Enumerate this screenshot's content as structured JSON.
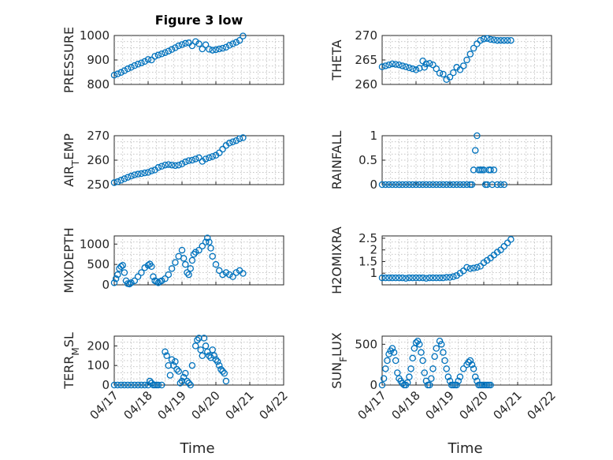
{
  "figure": {
    "title": "Figure 3 low"
  },
  "chart_data": [
    {
      "type": "scatter",
      "ylabel": "PRESSURE",
      "ylim": [
        800,
        1000
      ],
      "yticks": [
        800,
        900,
        1000
      ],
      "xlim": [
        0,
        5
      ],
      "x": [
        0.0,
        0.1,
        0.2,
        0.3,
        0.4,
        0.5,
        0.6,
        0.7,
        0.8,
        0.9,
        1.0,
        1.1,
        1.2,
        1.3,
        1.4,
        1.5,
        1.6,
        1.7,
        1.8,
        1.9,
        2.0,
        2.1,
        2.2,
        2.3,
        2.4,
        2.5,
        2.6,
        2.7,
        2.8,
        2.9,
        3.0,
        3.1,
        3.2,
        3.3,
        3.4,
        3.5,
        3.6,
        3.7,
        3.8
      ],
      "y": [
        838,
        843,
        849,
        856,
        864,
        870,
        877,
        883,
        888,
        894,
        902,
        900,
        915,
        920,
        925,
        930,
        936,
        943,
        950,
        958,
        963,
        968,
        970,
        958,
        975,
        966,
        945,
        962,
        944,
        940,
        942,
        945,
        948,
        952,
        960,
        966,
        972,
        980,
        998
      ],
      "grid": true
    },
    {
      "type": "scatter",
      "ylabel": "THETA",
      "ylim": [
        260,
        270
      ],
      "yticks": [
        260,
        265,
        270
      ],
      "xlim": [
        0,
        5
      ],
      "x": [
        0.0,
        0.1,
        0.2,
        0.3,
        0.4,
        0.5,
        0.6,
        0.7,
        0.8,
        0.9,
        1.0,
        1.1,
        1.2,
        1.25,
        1.3,
        1.4,
        1.5,
        1.6,
        1.7,
        1.8,
        1.9,
        2.0,
        2.1,
        2.2,
        2.3,
        2.4,
        2.5,
        2.6,
        2.7,
        2.8,
        2.9,
        3.0,
        3.1,
        3.2,
        3.3,
        3.4,
        3.5,
        3.6,
        3.7,
        3.8
      ],
      "y": [
        263.6,
        263.8,
        264.0,
        264.2,
        264.1,
        264.0,
        263.8,
        263.6,
        263.4,
        263.2,
        263.0,
        263.3,
        264.8,
        263.5,
        264.2,
        264.3,
        264.0,
        263.2,
        262.3,
        262.1,
        261.0,
        261.5,
        262.4,
        263.5,
        263.0,
        263.8,
        265.0,
        266.2,
        267.4,
        268.3,
        269.0,
        269.3,
        269.4,
        269.2,
        269.1,
        269.0,
        269.0,
        269.0,
        269.0,
        269.0
      ],
      "grid": true
    },
    {
      "type": "scatter",
      "ylabel": "AIR_TEMP",
      "ylim": [
        250,
        270
      ],
      "yticks": [
        250,
        260,
        270
      ],
      "xlim": [
        0,
        5
      ],
      "x": [
        0.0,
        0.1,
        0.2,
        0.3,
        0.4,
        0.5,
        0.6,
        0.7,
        0.8,
        0.9,
        1.0,
        1.1,
        1.2,
        1.3,
        1.4,
        1.5,
        1.6,
        1.7,
        1.8,
        1.9,
        2.0,
        2.1,
        2.2,
        2.3,
        2.4,
        2.5,
        2.6,
        2.7,
        2.8,
        2.9,
        3.0,
        3.1,
        3.2,
        3.3,
        3.4,
        3.5,
        3.6,
        3.7,
        3.8
      ],
      "y": [
        250.8,
        251.2,
        251.8,
        252.4,
        253.0,
        253.5,
        254.0,
        254.3,
        254.5,
        254.8,
        255.0,
        255.6,
        256.0,
        257.0,
        257.5,
        258.0,
        258.2,
        258.0,
        257.8,
        258.0,
        258.5,
        259.3,
        259.8,
        260.0,
        260.5,
        261.0,
        259.5,
        260.5,
        261.0,
        261.5,
        262.0,
        263.0,
        264.5,
        266.0,
        267.0,
        267.5,
        268.0,
        268.8,
        269.2
      ],
      "grid": true
    },
    {
      "type": "scatter",
      "ylabel": "RAINFALL",
      "ylim": [
        0,
        1
      ],
      "yticks": [
        0,
        0.5,
        1
      ],
      "xlim": [
        0,
        5
      ],
      "x": [
        0.0,
        0.1,
        0.2,
        0.3,
        0.4,
        0.5,
        0.6,
        0.7,
        0.8,
        0.9,
        1.0,
        1.1,
        1.2,
        1.3,
        1.4,
        1.5,
        1.6,
        1.7,
        1.8,
        1.9,
        2.0,
        2.1,
        2.2,
        2.3,
        2.4,
        2.5,
        2.6,
        2.65,
        2.7,
        2.75,
        2.8,
        2.85,
        2.9,
        2.95,
        3.0,
        3.05,
        3.1,
        3.15,
        3.2,
        3.25,
        3.3,
        3.4,
        3.5,
        3.6
      ],
      "y": [
        0,
        0,
        0,
        0,
        0,
        0,
        0,
        0,
        0,
        0,
        0,
        0,
        0,
        0,
        0,
        0,
        0,
        0,
        0,
        0,
        0,
        0,
        0,
        0,
        0,
        0,
        0,
        0,
        0.3,
        0.7,
        1.0,
        0.3,
        0.3,
        0.3,
        0.3,
        0,
        0,
        0.3,
        0.3,
        0,
        0.3,
        0,
        0,
        0
      ],
      "grid": true
    },
    {
      "type": "scatter",
      "ylabel": "MIXDEPTH",
      "ylim": [
        0,
        1200
      ],
      "yticks": [
        0,
        500,
        1000
      ],
      "xlim": [
        0,
        5
      ],
      "x": [
        0.0,
        0.05,
        0.1,
        0.15,
        0.2,
        0.25,
        0.3,
        0.35,
        0.4,
        0.45,
        0.5,
        0.6,
        0.7,
        0.8,
        0.9,
        1.0,
        1.05,
        1.1,
        1.15,
        1.2,
        1.25,
        1.3,
        1.35,
        1.4,
        1.5,
        1.6,
        1.7,
        1.8,
        1.9,
        2.0,
        2.05,
        2.1,
        2.15,
        2.2,
        2.25,
        2.3,
        2.35,
        2.4,
        2.5,
        2.6,
        2.7,
        2.75,
        2.8,
        2.85,
        2.9,
        3.0,
        3.1,
        3.2,
        3.3,
        3.4,
        3.5,
        3.6,
        3.7,
        3.8
      ],
      "y": [
        50,
        150,
        250,
        400,
        450,
        480,
        300,
        100,
        30,
        20,
        50,
        100,
        200,
        300,
        420,
        480,
        510,
        450,
        200,
        100,
        80,
        50,
        80,
        100,
        150,
        250,
        400,
        550,
        700,
        850,
        650,
        500,
        300,
        250,
        400,
        600,
        750,
        800,
        850,
        950,
        1050,
        1150,
        1050,
        900,
        700,
        500,
        350,
        250,
        300,
        250,
        200,
        300,
        350,
        280
      ],
      "grid": true
    },
    {
      "type": "scatter",
      "ylabel": "H2OMIXRA",
      "ylim": [
        0.5,
        2.6
      ],
      "yticks": [
        1,
        1.5,
        2,
        2.5
      ],
      "xlim": [
        0,
        5
      ],
      "x": [
        0.0,
        0.1,
        0.2,
        0.3,
        0.4,
        0.5,
        0.6,
        0.7,
        0.8,
        0.9,
        1.0,
        1.1,
        1.2,
        1.3,
        1.4,
        1.5,
        1.6,
        1.7,
        1.8,
        1.9,
        2.0,
        2.1,
        2.2,
        2.3,
        2.4,
        2.5,
        2.6,
        2.7,
        2.8,
        2.9,
        3.0,
        3.1,
        3.2,
        3.3,
        3.4,
        3.5,
        3.6,
        3.7,
        3.8
      ],
      "y": [
        0.8,
        0.8,
        0.8,
        0.8,
        0.8,
        0.8,
        0.8,
        0.78,
        0.8,
        0.8,
        0.8,
        0.8,
        0.8,
        0.78,
        0.8,
        0.8,
        0.8,
        0.8,
        0.8,
        0.82,
        0.82,
        0.85,
        0.9,
        1.0,
        1.1,
        1.25,
        1.2,
        1.22,
        1.25,
        1.3,
        1.45,
        1.55,
        1.65,
        1.78,
        1.9,
        2.0,
        2.15,
        2.3,
        2.45
      ],
      "grid": true
    },
    {
      "type": "scatter",
      "ylabel": "TERR_MSL",
      "ylim": [
        0,
        250
      ],
      "yticks": [
        0,
        100,
        200
      ],
      "xlim": [
        0,
        5
      ],
      "x": [
        0.0,
        0.1,
        0.2,
        0.3,
        0.4,
        0.5,
        0.6,
        0.7,
        0.8,
        0.9,
        1.0,
        1.05,
        1.1,
        1.15,
        1.2,
        1.25,
        1.3,
        1.4,
        1.5,
        1.55,
        1.6,
        1.65,
        1.7,
        1.75,
        1.8,
        1.85,
        1.9,
        1.95,
        2.0,
        2.05,
        2.1,
        2.15,
        2.2,
        2.25,
        2.3,
        2.4,
        2.45,
        2.5,
        2.55,
        2.6,
        2.65,
        2.7,
        2.75,
        2.8,
        2.85,
        2.9,
        2.95,
        3.0,
        3.05,
        3.1,
        3.15,
        3.2,
        3.25,
        3.3
      ],
      "y": [
        0,
        0,
        0,
        0,
        0,
        0,
        0,
        0,
        0,
        0,
        0,
        20,
        10,
        0,
        0,
        0,
        0,
        0,
        170,
        150,
        100,
        50,
        130,
        100,
        120,
        80,
        70,
        10,
        20,
        40,
        60,
        20,
        10,
        0,
        100,
        200,
        230,
        240,
        180,
        150,
        240,
        200,
        170,
        150,
        140,
        180,
        150,
        130,
        120,
        100,
        80,
        70,
        60,
        20
      ],
      "grid": true
    },
    {
      "type": "scatter",
      "ylabel": "SUN_FLUX",
      "ylim": [
        0,
        600
      ],
      "yticks": [
        0,
        500
      ],
      "xlim": [
        0,
        5
      ],
      "x": [
        0.0,
        0.05,
        0.1,
        0.15,
        0.2,
        0.25,
        0.3,
        0.35,
        0.4,
        0.45,
        0.5,
        0.55,
        0.6,
        0.65,
        0.7,
        0.75,
        0.8,
        0.85,
        0.9,
        0.95,
        1.0,
        1.05,
        1.1,
        1.15,
        1.2,
        1.25,
        1.3,
        1.35,
        1.4,
        1.45,
        1.5,
        1.55,
        1.6,
        1.7,
        1.75,
        1.8,
        1.85,
        1.9,
        1.95,
        2.0,
        2.05,
        2.1,
        2.15,
        2.2,
        2.25,
        2.3,
        2.4,
        2.5,
        2.55,
        2.6,
        2.65,
        2.7,
        2.75,
        2.8,
        2.85,
        2.9,
        2.95,
        3.0,
        3.05,
        3.1,
        3.15,
        3.2
      ],
      "y": [
        0,
        80,
        200,
        300,
        380,
        420,
        450,
        400,
        300,
        150,
        80,
        50,
        20,
        0,
        0,
        30,
        100,
        200,
        330,
        450,
        520,
        540,
        500,
        400,
        300,
        150,
        50,
        0,
        0,
        80,
        200,
        350,
        450,
        540,
        500,
        400,
        300,
        200,
        100,
        50,
        0,
        0,
        0,
        0,
        50,
        100,
        200,
        250,
        280,
        300,
        250,
        200,
        100,
        50,
        0,
        0,
        0,
        0,
        0,
        0,
        0,
        0
      ],
      "grid": true
    }
  ],
  "shared_x": {
    "tick_labels": [
      "04/17",
      "04/18",
      "04/19",
      "04/20",
      "04/21",
      "04/22"
    ],
    "xlabel": "Time"
  }
}
